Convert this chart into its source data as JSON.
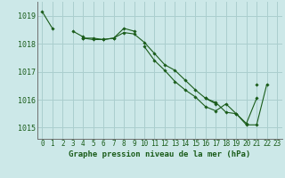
{
  "bg_color": "#cce8e8",
  "grid_color": "#aacece",
  "line_color": "#1a5c1a",
  "marker_color": "#1a5c1a",
  "xlabel": "Graphe pression niveau de la mer (hPa)",
  "xlabel_fontsize": 6.5,
  "tick_fontsize": 5.5,
  "ytick_fontsize": 6.0,
  "xtick_labels": [
    "0",
    "1",
    "2",
    "3",
    "4",
    "5",
    "6",
    "7",
    "8",
    "9",
    "10",
    "11",
    "12",
    "13",
    "14",
    "15",
    "16",
    "17",
    "18",
    "19",
    "20",
    "21",
    "22",
    "23"
  ],
  "ytick_values": [
    1015,
    1016,
    1017,
    1018,
    1019
  ],
  "ylim": [
    1014.6,
    1019.5
  ],
  "xlim": [
    -0.5,
    23.5
  ],
  "series": [
    [
      1019.15,
      1018.55,
      null,
      null,
      1018.2,
      1018.15,
      1018.15,
      1018.2,
      1018.4,
      1018.35,
      1018.05,
      1017.65,
      1017.25,
      1017.05,
      1016.7,
      1016.35,
      1016.05,
      1015.85,
      null,
      null,
      null,
      1016.55,
      null,
      null
    ],
    [
      null,
      null,
      null,
      null,
      1018.2,
      1018.2,
      1018.15,
      1018.2,
      1018.55,
      1018.45,
      null,
      null,
      null,
      null,
      null,
      null,
      null,
      null,
      null,
      null,
      null,
      null,
      null,
      null
    ],
    [
      null,
      null,
      null,
      1018.45,
      1018.25,
      null,
      null,
      null,
      null,
      null,
      1017.9,
      1017.4,
      1017.05,
      1016.65,
      1016.35,
      1016.1,
      1015.75,
      1015.6,
      1015.85,
      1015.5,
      1015.15,
      1016.05,
      null,
      null
    ],
    [
      null,
      null,
      null,
      null,
      null,
      null,
      null,
      null,
      null,
      null,
      null,
      null,
      null,
      null,
      null,
      null,
      1016.05,
      1015.9,
      1015.55,
      1015.5,
      1015.1,
      1015.1,
      1016.55,
      null
    ]
  ]
}
